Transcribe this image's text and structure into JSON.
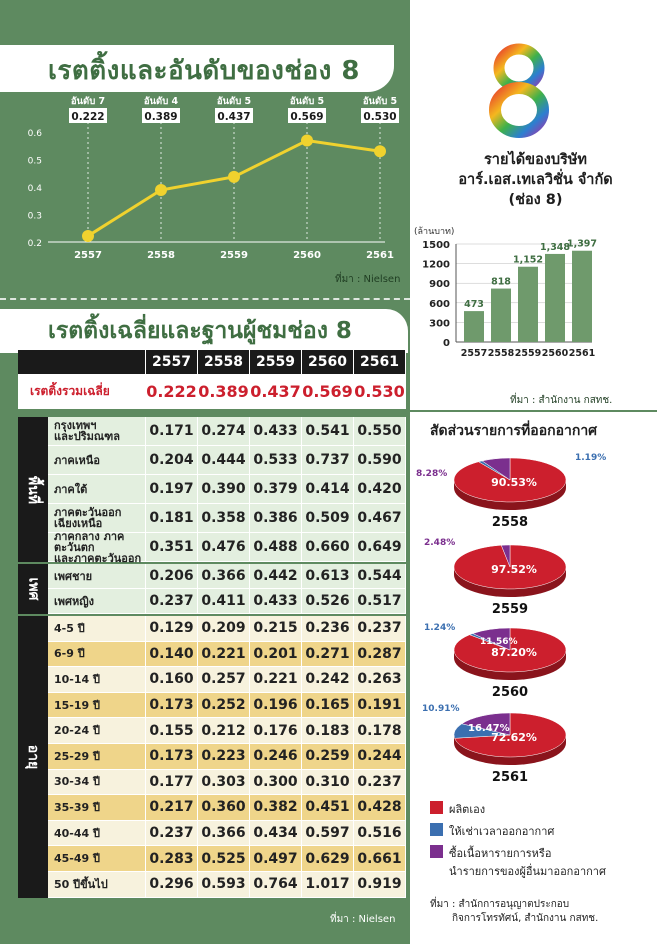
{
  "title_top": "เรตติ้งและอันดับของช่อง 8",
  "title_table": "เรตติ้งเฉลี่ยและฐานผู้ชมช่อง 8",
  "source_nielsen": "ที่มา : Nielsen",
  "source_nbtc": "ที่มา : สำนักงาน กสทช.",
  "source_pie_line1": "ที่มา : สำนักการอนุญาตประกอบ",
  "source_pie_line2": "กิจการโทรทัศน์, สำนักงาน กสทช.",
  "revenue_title": [
    "รายได้ของบริษัท",
    "อาร์.เอส.เทเลวิชั่น จำกัด",
    "(ช่อง 8)"
  ],
  "pie_title": "สัดส่วนรายการที่ออกอากาศ",
  "colors": {
    "green": "#5e8a60",
    "dark_green": "#3f6e42",
    "yellow": "#f0d22e",
    "red": "#cc1f2d",
    "blue": "#3b6fb0",
    "purple": "#7b2f8e",
    "bar_green": "#6f9a6c"
  },
  "chart_data": [
    {
      "type": "line",
      "x": [
        "2557",
        "2558",
        "2559",
        "2560",
        "2561"
      ],
      "values": [
        0.222,
        0.389,
        0.437,
        0.569,
        0.53
      ],
      "rank_labels": [
        "อันดับ 7",
        "อันดับ 4",
        "อันดับ 5",
        "อันดับ 5",
        "อันดับ 5"
      ],
      "value_labels": [
        "0.222",
        "0.389",
        "0.437",
        "0.569",
        "0.530"
      ],
      "ylim": [
        0.2,
        0.6
      ],
      "yticks": [
        "0.2",
        "0.3",
        "0.4",
        "0.5",
        "0.6"
      ]
    },
    {
      "type": "bar",
      "categories": [
        "2557",
        "2558",
        "2559",
        "2560",
        "2561"
      ],
      "values": [
        473,
        818,
        1152,
        1348,
        1397
      ],
      "value_labels": [
        "473",
        "818",
        "1,152",
        "1,348",
        "1,397"
      ],
      "ylabel": "(ล้านบาท)",
      "ylim": [
        0,
        1500
      ],
      "yticks": [
        "0",
        "300",
        "600",
        "900",
        "1200",
        "1500"
      ]
    },
    {
      "type": "pie",
      "charts": [
        {
          "year": "2558",
          "slices": [
            {
              "name": "ผลิตเอง",
              "value": 90.53,
              "label": "90.53%"
            },
            {
              "name": "ให้เช่าเวลาออกอากาศ",
              "value": 1.19,
              "label": "1.19%"
            },
            {
              "name": "ซื้อเนื้อหารายการหรือนำรายการของผู้อื่นมาออกอากาศ",
              "value": 8.28,
              "label": "8.28%"
            }
          ]
        },
        {
          "year": "2559",
          "slices": [
            {
              "name": "ผลิตเอง",
              "value": 97.52,
              "label": "97.52%"
            },
            {
              "name": "ให้เช่าเวลาออกอากาศ",
              "value": 0,
              "label": ""
            },
            {
              "name": "ซื้อเนื้อหารายการหรือนำรายการของผู้อื่นมาออกอากาศ",
              "value": 2.48,
              "label": "2.48%"
            }
          ]
        },
        {
          "year": "2560",
          "slices": [
            {
              "name": "ผลิตเอง",
              "value": 87.2,
              "label": "87.20%"
            },
            {
              "name": "ให้เช่าเวลาออกอากาศ",
              "value": 1.24,
              "label": "1.24%"
            },
            {
              "name": "ซื้อเนื้อหารายการหรือนำรายการของผู้อื่นมาออกอากาศ",
              "value": 11.56,
              "label": "11.56%"
            }
          ]
        },
        {
          "year": "2561",
          "slices": [
            {
              "name": "ผลิตเอง",
              "value": 72.62,
              "label": "72.62%"
            },
            {
              "name": "ให้เช่าเวลาออกอากาศ",
              "value": 10.91,
              "label": "10.91%"
            },
            {
              "name": "ซื้อเนื้อหารายการหรือนำรายการของผู้อื่นมาออกอากาศ",
              "value": 16.47,
              "label": "16.47%"
            }
          ]
        }
      ],
      "legend": [
        "ผลิตเอง",
        "ให้เช่าเวลาออกอากาศ",
        [
          "ซื้อเนื้อหารายการหรือ",
          "นำรายการของผู้อื่นมาออกอากาศ"
        ]
      ]
    }
  ],
  "table": {
    "years": [
      "2557",
      "2558",
      "2559",
      "2560",
      "2561"
    ],
    "total": {
      "label": "เรตติ้งรวมเฉลี่ย",
      "values": [
        "0.222",
        "0.389",
        "0.437",
        "0.569",
        "0.530"
      ]
    },
    "groups": [
      {
        "side": "พื้นที่",
        "rows": [
          {
            "label": [
              "กรุงเทพฯ",
              "และปริมณฑล"
            ],
            "values": [
              "0.171",
              "0.274",
              "0.433",
              "0.541",
              "0.550"
            ]
          },
          {
            "label": [
              "ภาคเหนือ"
            ],
            "values": [
              "0.204",
              "0.444",
              "0.533",
              "0.737",
              "0.590"
            ]
          },
          {
            "label": [
              "ภาคใต้"
            ],
            "values": [
              "0.197",
              "0.390",
              "0.379",
              "0.414",
              "0.420"
            ]
          },
          {
            "label": [
              "ภาคตะวันออก",
              "เฉียงเหนือ"
            ],
            "values": [
              "0.181",
              "0.358",
              "0.386",
              "0.509",
              "0.467"
            ]
          },
          {
            "label": [
              "ภาคกลาง ภาคตะวันตก",
              "และภาคตะวันออก"
            ],
            "values": [
              "0.351",
              "0.476",
              "0.488",
              "0.660",
              "0.649"
            ]
          }
        ]
      },
      {
        "side": "เพศ",
        "rows": [
          {
            "label": [
              "เพศชาย"
            ],
            "values": [
              "0.206",
              "0.366",
              "0.442",
              "0.613",
              "0.544"
            ]
          },
          {
            "label": [
              "เพศหญิง"
            ],
            "values": [
              "0.237",
              "0.411",
              "0.433",
              "0.526",
              "0.517"
            ]
          }
        ]
      },
      {
        "side": "อายุ",
        "rows": [
          {
            "label": [
              "4-5 ปี"
            ],
            "values": [
              "0.129",
              "0.209",
              "0.215",
              "0.236",
              "0.237"
            ]
          },
          {
            "label": [
              "6-9 ปี"
            ],
            "values": [
              "0.140",
              "0.221",
              "0.201",
              "0.271",
              "0.287"
            ]
          },
          {
            "label": [
              "10-14 ปี"
            ],
            "values": [
              "0.160",
              "0.257",
              "0.221",
              "0.242",
              "0.263"
            ]
          },
          {
            "label": [
              "15-19 ปี"
            ],
            "values": [
              "0.173",
              "0.252",
              "0.196",
              "0.165",
              "0.191"
            ]
          },
          {
            "label": [
              "20-24 ปี"
            ],
            "values": [
              "0.155",
              "0.212",
              "0.176",
              "0.183",
              "0.178"
            ]
          },
          {
            "label": [
              "25-29 ปี"
            ],
            "values": [
              "0.173",
              "0.223",
              "0.246",
              "0.259",
              "0.244"
            ]
          },
          {
            "label": [
              "30-34 ปี"
            ],
            "values": [
              "0.177",
              "0.303",
              "0.300",
              "0.310",
              "0.237"
            ]
          },
          {
            "label": [
              "35-39 ปี"
            ],
            "values": [
              "0.217",
              "0.360",
              "0.382",
              "0.451",
              "0.428"
            ]
          },
          {
            "label": [
              "40-44 ปี"
            ],
            "values": [
              "0.237",
              "0.366",
              "0.434",
              "0.597",
              "0.516"
            ]
          },
          {
            "label": [
              "45-49 ปี"
            ],
            "values": [
              "0.283",
              "0.525",
              "0.497",
              "0.629",
              "0.661"
            ]
          },
          {
            "label": [
              "50 ปีขึ้นไป"
            ],
            "values": [
              "0.296",
              "0.593",
              "0.764",
              "1.017",
              "0.919"
            ]
          }
        ]
      }
    ]
  }
}
